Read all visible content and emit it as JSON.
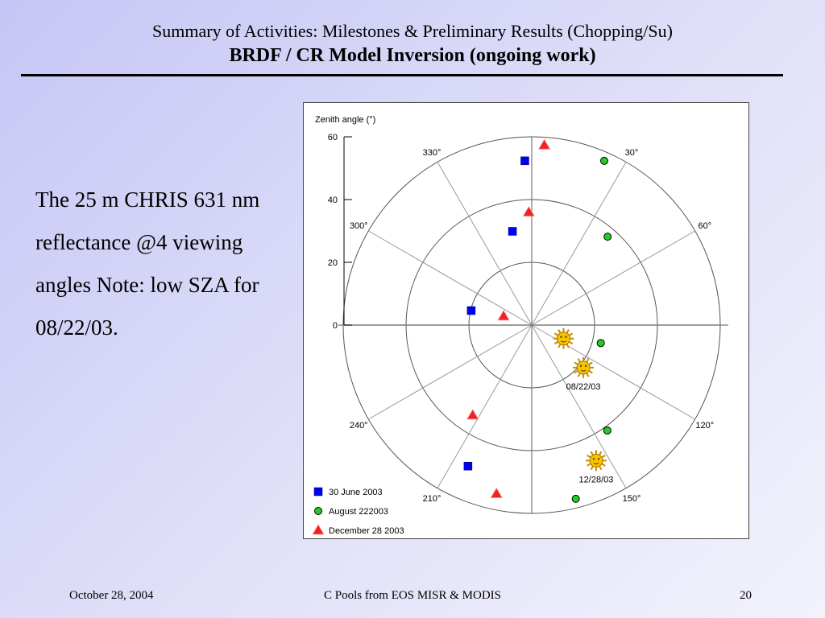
{
  "slide": {
    "title": "Summary of Activities: Milestones & Preliminary Results (Chopping/Su)",
    "subtitle": "BRDF / CR Model Inversion (ongoing work)",
    "body": "The 25 m CHRIS 631 nm reflectance @4 viewing angles Note: low SZA for 08/22/03."
  },
  "footer": {
    "date": "October 28, 2004",
    "center": "C Pools from EOS MISR & MODIS",
    "page": "20"
  },
  "chart_data": {
    "type": "scatter",
    "coordinate_system": "polar",
    "radial_axis_label": "Zenith angle (°)",
    "radial_range": [
      0,
      60
    ],
    "radial_ticks": [
      "0",
      "20",
      "40",
      "60"
    ],
    "azimuth_ticks": [
      {
        "deg": 30,
        "label": "30°"
      },
      {
        "deg": 60,
        "label": "60°"
      },
      {
        "deg": 120,
        "label": "120°"
      },
      {
        "deg": 150,
        "label": "150°"
      },
      {
        "deg": 210,
        "label": "210°"
      },
      {
        "deg": 240,
        "label": "240°"
      },
      {
        "deg": 300,
        "label": "300°"
      },
      {
        "deg": 330,
        "label": "330°"
      }
    ],
    "azimuth_zero": "top",
    "azimuth_direction": "clockwise",
    "grid": true,
    "legend_position": "bottom-left",
    "series": [
      {
        "name": "30 June 2003",
        "marker": "square",
        "color": "#0000ee",
        "points": [
          {
            "zenith": 52.4,
            "azimuth": 357.6
          },
          {
            "zenith": 30.5,
            "azimuth": 348.4
          },
          {
            "zenith": 19.8,
            "azimuth": 283.5
          },
          {
            "zenith": 49.3,
            "azimuth": 204.3
          }
        ]
      },
      {
        "name": "August 222003",
        "marker": "circle",
        "color": "#22cc22",
        "points": [
          {
            "zenith": 57.2,
            "azimuth": 23.8
          },
          {
            "zenith": 37.1,
            "azimuth": 40.6
          },
          {
            "zenith": 22.7,
            "azimuth": 104.6
          },
          {
            "zenith": 41.3,
            "azimuth": 144.4
          },
          {
            "zenith": 57.1,
            "azimuth": 165.8
          }
        ]
      },
      {
        "name": "December 28 2003",
        "marker": "triangle",
        "color": "#ee2222",
        "points": [
          {
            "zenith": 57.5,
            "azimuth": 4.0
          },
          {
            "zenith": 36.0,
            "azimuth": 358.5
          },
          {
            "zenith": 9.4,
            "azimuth": 287.7
          },
          {
            "zenith": 34.3,
            "azimuth": 213.2
          },
          {
            "zenith": 54.9,
            "azimuth": 191.8
          }
        ]
      }
    ],
    "sun_positions": [
      {
        "zenith": 11.0,
        "azimuth": 113.0,
        "label": ""
      },
      {
        "zenith": 21.3,
        "azimuth": 129.5,
        "label": "08/22/03"
      },
      {
        "zenith": 47.8,
        "azimuth": 154.6,
        "label": "12/28/03"
      }
    ]
  }
}
